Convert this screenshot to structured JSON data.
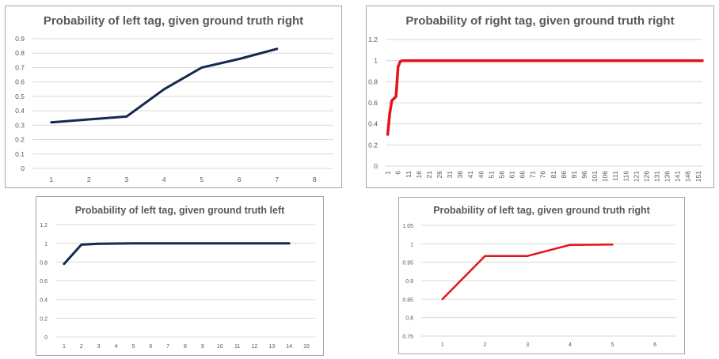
{
  "colors": {
    "navy": "#13294f",
    "red": "#e8111a",
    "grid": "#d9d9d9",
    "text": "#595959"
  },
  "chart_data": [
    {
      "type": "line",
      "title": "Probability  of left tag, given ground truth right",
      "x_ticks": [
        "1",
        "2",
        "3",
        "4",
        "5",
        "6",
        "7",
        "8"
      ],
      "y_ticks": [
        "0",
        "0.1",
        "0.2",
        "0.3",
        "0.4",
        "0.5",
        "0.6",
        "0.7",
        "0.8",
        "0.9"
      ],
      "ylim": [
        0,
        0.9
      ],
      "grid": true,
      "color": "#13294f",
      "series": [
        {
          "x": [
            1,
            2,
            3,
            4,
            5,
            6,
            7
          ],
          "values": [
            0.32,
            0.34,
            0.36,
            0.55,
            0.7,
            0.76,
            0.83
          ]
        }
      ]
    },
    {
      "type": "line",
      "title": "Probability  of right tag, given ground truth right",
      "x_ticks": [
        "1",
        "6",
        "11",
        "16",
        "21",
        "26",
        "31",
        "36",
        "41",
        "46",
        "51",
        "56",
        "61",
        "66",
        "71",
        "76",
        "81",
        "86",
        "91",
        "96",
        "101",
        "106",
        "111",
        "116",
        "121",
        "126",
        "131",
        "136",
        "141",
        "146",
        "151"
      ],
      "y_ticks": [
        "0",
        "0.2",
        "0.4",
        "0.6",
        "0.8",
        "1",
        "1.2"
      ],
      "ylim": [
        0,
        1.2
      ],
      "grid": true,
      "color": "#e8111a",
      "series": [
        {
          "x": [
            1,
            2,
            3,
            4,
            5,
            6,
            7,
            8,
            9,
            10,
            153
          ],
          "values": [
            0.3,
            0.5,
            0.62,
            0.64,
            0.66,
            0.94,
            0.99,
            1,
            1,
            1,
            1
          ]
        }
      ]
    },
    {
      "type": "line",
      "title": "Probability  of left tag, given ground truth left",
      "x_ticks": [
        "1",
        "2",
        "3",
        "4",
        "5",
        "6",
        "7",
        "8",
        "9",
        "10",
        "11",
        "12",
        "13",
        "14",
        "15"
      ],
      "y_ticks": [
        "0",
        "0.2",
        "0.4",
        "0.6",
        "0.8",
        "1",
        "1.2"
      ],
      "ylim": [
        0,
        1.2
      ],
      "grid": true,
      "color": "#13294f",
      "series": [
        {
          "x": [
            1,
            2,
            3,
            4,
            5,
            6,
            7,
            8,
            9,
            10,
            11,
            12,
            13,
            14
          ],
          "values": [
            0.78,
            0.985,
            0.995,
            0.997,
            1,
            1,
            1,
            1,
            1,
            1,
            1,
            1,
            1,
            1
          ]
        }
      ]
    },
    {
      "type": "line",
      "title": "Probability  of left tag, given ground truth right",
      "x_ticks": [
        "1",
        "2",
        "3",
        "4",
        "5",
        "6"
      ],
      "y_ticks": [
        "0.75",
        "0.8",
        "0.85",
        "0.9",
        "0.95",
        "1",
        "1.05"
      ],
      "ylim": [
        0.75,
        1.05
      ],
      "grid": true,
      "color": "#e8111a",
      "series": [
        {
          "x": [
            1,
            2,
            3,
            4,
            5
          ],
          "values": [
            0.85,
            0.967,
            0.967,
            0.997,
            0.998
          ]
        }
      ]
    }
  ]
}
